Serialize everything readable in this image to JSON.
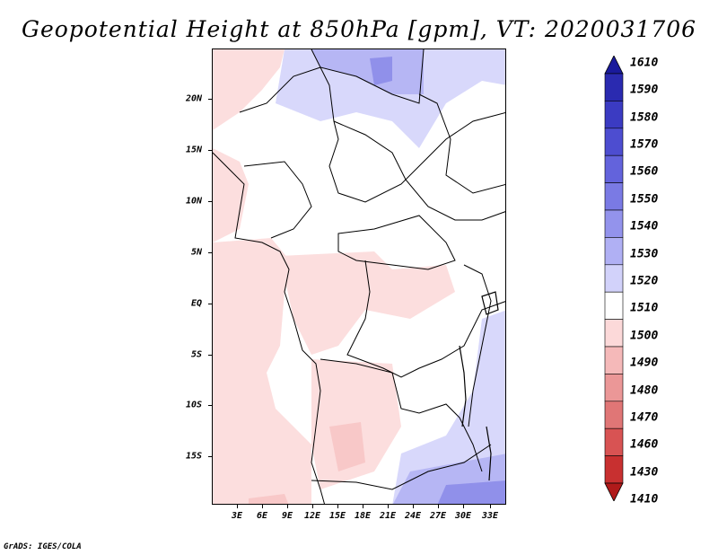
{
  "title": "Geopotential Height at 850hPa [gpm], VT: 2020031706",
  "credit": "GrADS: IGES/COLA",
  "y_axis_labels": [
    "20N",
    "15N",
    "10N",
    "5N",
    "EQ",
    "5S",
    "10S",
    "15S"
  ],
  "x_axis_labels": [
    "3E",
    "6E",
    "9E",
    "12E",
    "15E",
    "18E",
    "21E",
    "24E",
    "27E",
    "30E",
    "33E"
  ],
  "colorbar": {
    "labels": [
      "1610",
      "1590",
      "1580",
      "1570",
      "1560",
      "1550",
      "1540",
      "1530",
      "1520",
      "1510",
      "1500",
      "1490",
      "1480",
      "1470",
      "1460",
      "1430",
      "1410"
    ],
    "colors": [
      "#1a1a9c",
      "#2a2ab0",
      "#3b3bc2",
      "#4d4dd0",
      "#6363dc",
      "#7a7ae4",
      "#9393ec",
      "#b0b0f4",
      "#d2d2fa",
      "#ffffff",
      "#fcd9d9",
      "#f5b9b9",
      "#eb9797",
      "#e07676",
      "#d85353",
      "#c83030",
      "#b01a1a"
    ],
    "units": "gpm"
  },
  "map": {
    "region": "Central Africa",
    "lon_range": [
      0,
      35
    ],
    "lat_range": [
      -20,
      25
    ],
    "fill_colors": {
      "background": "#ffffff",
      "pink_light": "#fcdede",
      "pink_medium": "#f8c8c8",
      "blue_light": "#d8d8fb",
      "blue_medium": "#b6b6f4",
      "blue_strong": "#9090ea"
    }
  }
}
